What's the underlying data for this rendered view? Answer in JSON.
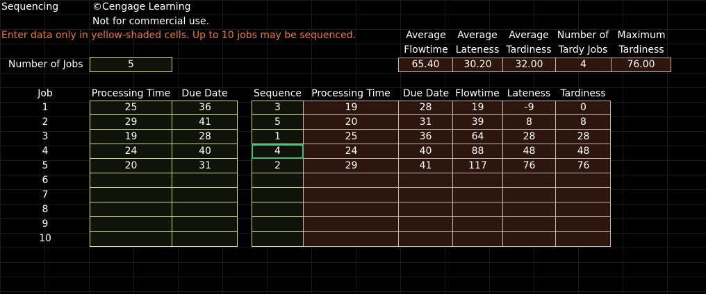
{
  "sheet": {
    "title": "Sequencing",
    "copyright": "©Cengage Learning",
    "notice": "Not for commercial use.",
    "instruction": "Enter data only in yellow-shaded cells.  Up to 10 jobs may be sequenced."
  },
  "num_jobs": {
    "label": "Number of Jobs",
    "value": "5"
  },
  "stats": {
    "headers": [
      [
        "Average",
        "Flowtime"
      ],
      [
        "Average",
        "Lateness"
      ],
      [
        "Average",
        "Tardiness"
      ],
      [
        "Number of",
        "Tardy Jobs"
      ],
      [
        "Maximum",
        "Tardiness"
      ]
    ],
    "values": [
      "65.40",
      "30.20",
      "32.00",
      "4",
      "76.00"
    ]
  },
  "input_table": {
    "headers": {
      "job": "Job",
      "proc": "Processing Time",
      "due": "Due Date"
    },
    "jobs": [
      "1",
      "2",
      "3",
      "4",
      "5",
      "6",
      "7",
      "8",
      "9",
      "10"
    ],
    "proc": [
      "25",
      "29",
      "19",
      "24",
      "20",
      "",
      "",
      "",
      "",
      ""
    ],
    "due": [
      "36",
      "41",
      "28",
      "40",
      "31",
      "",
      "",
      "",
      "",
      ""
    ]
  },
  "output_table": {
    "headers": {
      "seq": "Sequence",
      "proc": "Processing Time",
      "due": "Due Date",
      "flow": "Flowtime",
      "late": "Lateness",
      "tardy": "Tardiness"
    },
    "seq": [
      "3",
      "5",
      "1",
      "4",
      "2",
      "",
      "",
      "",
      "",
      ""
    ],
    "proc": [
      "19",
      "20",
      "25",
      "24",
      "29",
      "",
      "",
      "",
      "",
      ""
    ],
    "due": [
      "28",
      "31",
      "36",
      "40",
      "41",
      "",
      "",
      "",
      "",
      ""
    ],
    "flow": [
      "19",
      "39",
      "64",
      "88",
      "117",
      "",
      "",
      "",
      "",
      ""
    ],
    "late": [
      "-9",
      "8",
      "28",
      "48",
      "76",
      "",
      "",
      "",
      "",
      ""
    ],
    "tardy": [
      "0",
      "8",
      "28",
      "48",
      "76",
      "",
      "",
      "",
      "",
      ""
    ]
  }
}
